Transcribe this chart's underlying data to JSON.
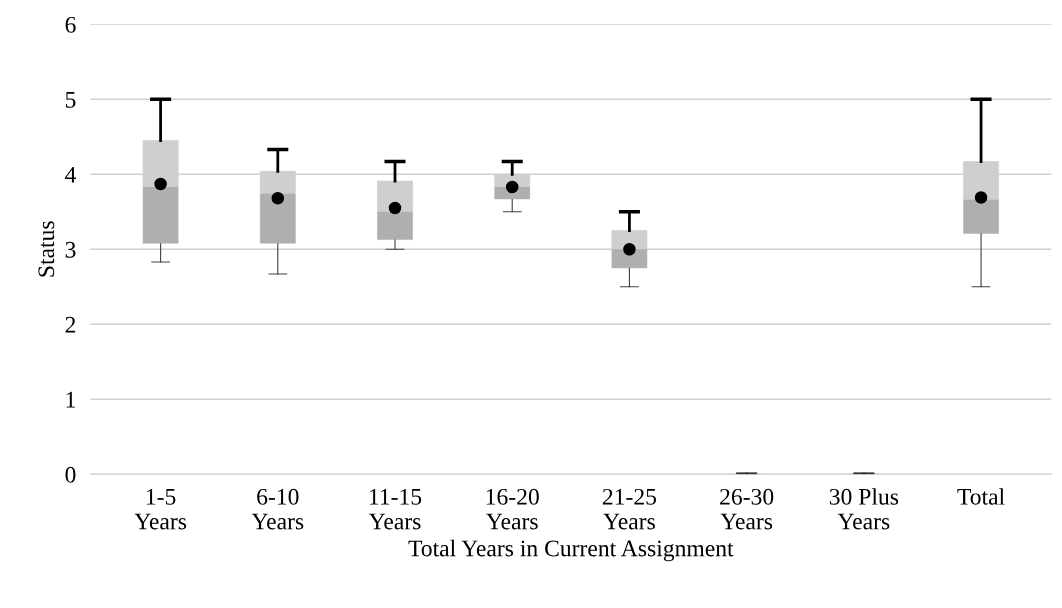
{
  "chart_data": {
    "type": "box",
    "xlabel": "Total Years in Current Assignment",
    "ylabel": "Status",
    "categories": [
      "1-5\nYears",
      "6-10\nYears",
      "11-15\nYears",
      "16-20\nYears",
      "21-25\nYears",
      "26-30\nYears",
      "30 Plus\nYears",
      "Total"
    ],
    "boxes": [
      {
        "low": 2.83,
        "q1": 3.08,
        "median": 3.83,
        "q3": 4.45,
        "high": 5,
        "mean": 3.87
      },
      {
        "low": 2.67,
        "q1": 3.08,
        "median": 3.74,
        "q3": 4.04,
        "high": 4.33,
        "mean": 3.68
      },
      {
        "low": 3.0,
        "q1": 3.13,
        "median": 3.5,
        "q3": 3.91,
        "high": 4.17,
        "mean": 3.55
      },
      {
        "low": 3.5,
        "q1": 3.67,
        "median": 3.83,
        "q3": 4.0,
        "high": 4.17,
        "mean": 3.83
      },
      {
        "low": 2.5,
        "q1": 2.75,
        "median": 3.0,
        "q3": 3.25,
        "high": 3.5,
        "mean": 3.0
      },
      {
        "low": 0,
        "q1": 0,
        "median": 0,
        "q3": 0,
        "high": 0
      },
      {
        "low": 0,
        "q1": 0,
        "median": 0,
        "q3": 0,
        "high": 0
      },
      {
        "low": 2.5,
        "q1": 3.21,
        "median": 3.66,
        "q3": 4.17,
        "high": 5,
        "mean": 3.69
      }
    ],
    "colors": [
      "#d0cece",
      "#d0cece",
      "#d0cece",
      "#d0cece",
      "#d0cece",
      "#d0cece",
      "#d0cece",
      "#d0cece"
    ],
    "ylim": [
      0,
      6
    ],
    "yticks": [
      0,
      1,
      2,
      3,
      4,
      5,
      6
    ],
    "grid": "y",
    "legend": false,
    "marker": "circle"
  }
}
